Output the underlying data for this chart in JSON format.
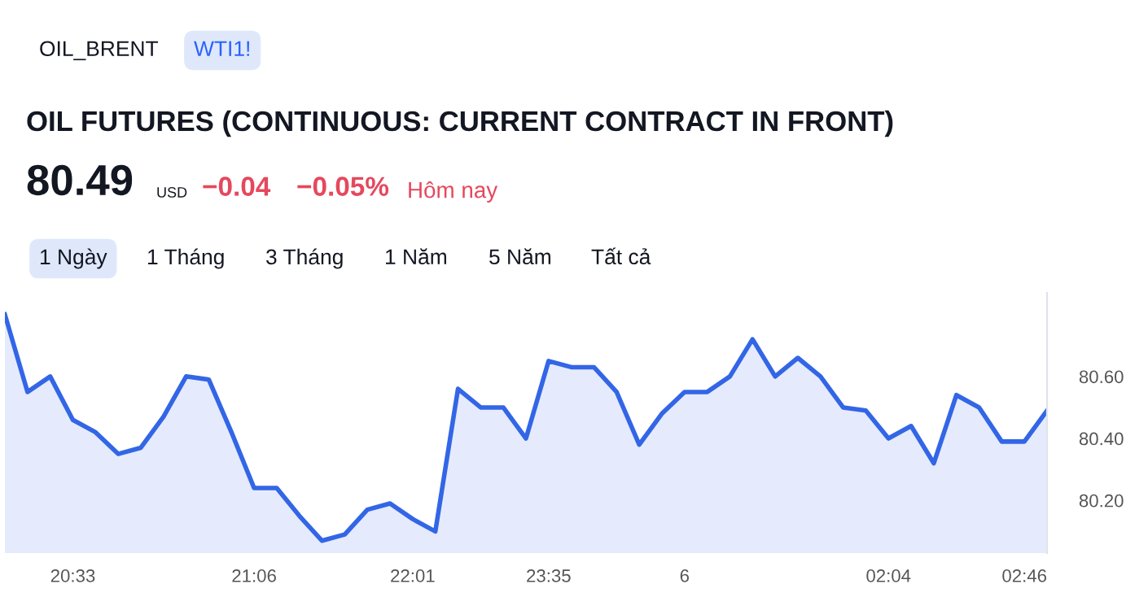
{
  "chart_data": {
    "type": "area",
    "title": "OIL FUTURES (CONTINUOUS: CURRENT CONTRACT IN FRONT)",
    "annotations": [
      "OIL_BRENT",
      "WTI1!",
      "80.49",
      "USD",
      "−0.04",
      "−0.05%",
      "Hôm nay",
      "1 Ngày",
      "1 Tháng",
      "3 Tháng",
      "1 Năm",
      "5 Năm",
      "Tất cả"
    ],
    "categories": [
      null,
      null,
      null,
      "20:33",
      null,
      null,
      null,
      null,
      null,
      null,
      null,
      "21:06",
      null,
      null,
      null,
      null,
      null,
      null,
      "22:01",
      null,
      null,
      null,
      null,
      null,
      "23:35",
      null,
      null,
      null,
      null,
      null,
      "6",
      null,
      null,
      null,
      null,
      null,
      null,
      null,
      null,
      "02:04",
      null,
      null,
      null,
      null,
      null,
      "02:46",
      null
    ],
    "series": [
      {
        "color": "#3366e6",
        "values": [
          80.8,
          80.55,
          80.6,
          80.46,
          80.42,
          80.35,
          80.37,
          80.47,
          80.6,
          80.59,
          80.42,
          80.24,
          80.24,
          80.15,
          80.07,
          80.09,
          80.17,
          80.19,
          80.14,
          80.1,
          80.56,
          80.5,
          80.5,
          80.4,
          80.65,
          80.63,
          80.63,
          80.55,
          80.38,
          80.48,
          80.55,
          80.55,
          80.6,
          80.72,
          80.6,
          80.66,
          80.6,
          80.5,
          80.49,
          80.4,
          80.44,
          80.32,
          80.54,
          80.5,
          80.39,
          80.39,
          80.49
        ]
      }
    ],
    "yticks": [
      {
        "value": 80.2,
        "label": "80.20"
      },
      {
        "value": 80.4,
        "label": "80.40"
      },
      {
        "value": 80.6,
        "label": "80.60"
      }
    ],
    "ylim": [
      80.03,
      80.87
    ],
    "grid": false,
    "legend": false
  }
}
